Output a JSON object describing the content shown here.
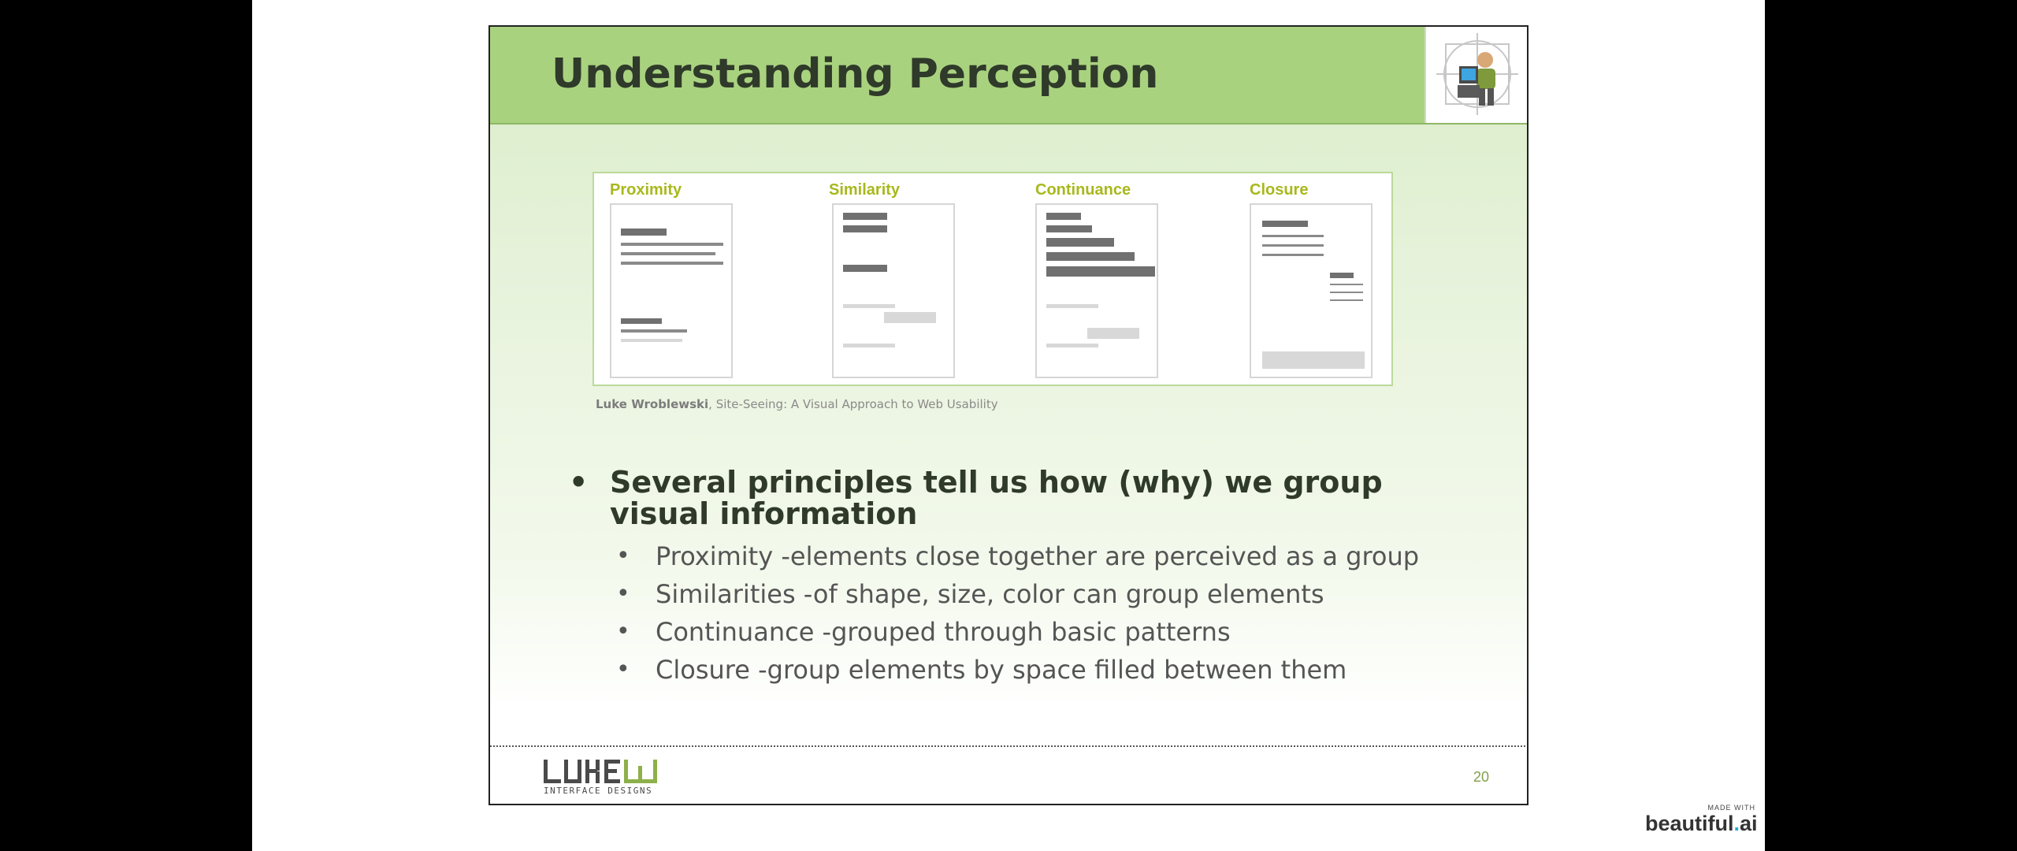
{
  "slide": {
    "title": "Understanding Perception",
    "page_number": "20"
  },
  "figure": {
    "principles": [
      {
        "title": "Proximity"
      },
      {
        "title": "Similarity"
      },
      {
        "title": "Continuance"
      },
      {
        "title": "Closure"
      }
    ],
    "caption_author": "Luke Wroblewski",
    "caption_rest": ", Site-Seeing: A Visual Approach to Web Usability"
  },
  "bullets": {
    "main": "Several principles tell us how (why) we group visual information",
    "sub": [
      "Proximity -elements close together are perceived as a group",
      "Similarities -of shape, size, color can group elements",
      "Continuance -grouped through basic patterns",
      "Closure -group elements by space filled between them"
    ]
  },
  "footer": {
    "logo_text": "LUKEW",
    "logo_subtext": "INTERFACE DESIGNS"
  },
  "badge": {
    "made_with": "MADE WITH",
    "brand_a": "beautiful",
    "brand_dot": ".",
    "brand_b": "ai"
  },
  "icons": {
    "header_logo": "computer-user-icon"
  },
  "colors": {
    "header_green": "#a9d27f",
    "title_text": "#2f3a2a",
    "principle_title": "#a8b81c",
    "page_number": "#7fa04c"
  }
}
